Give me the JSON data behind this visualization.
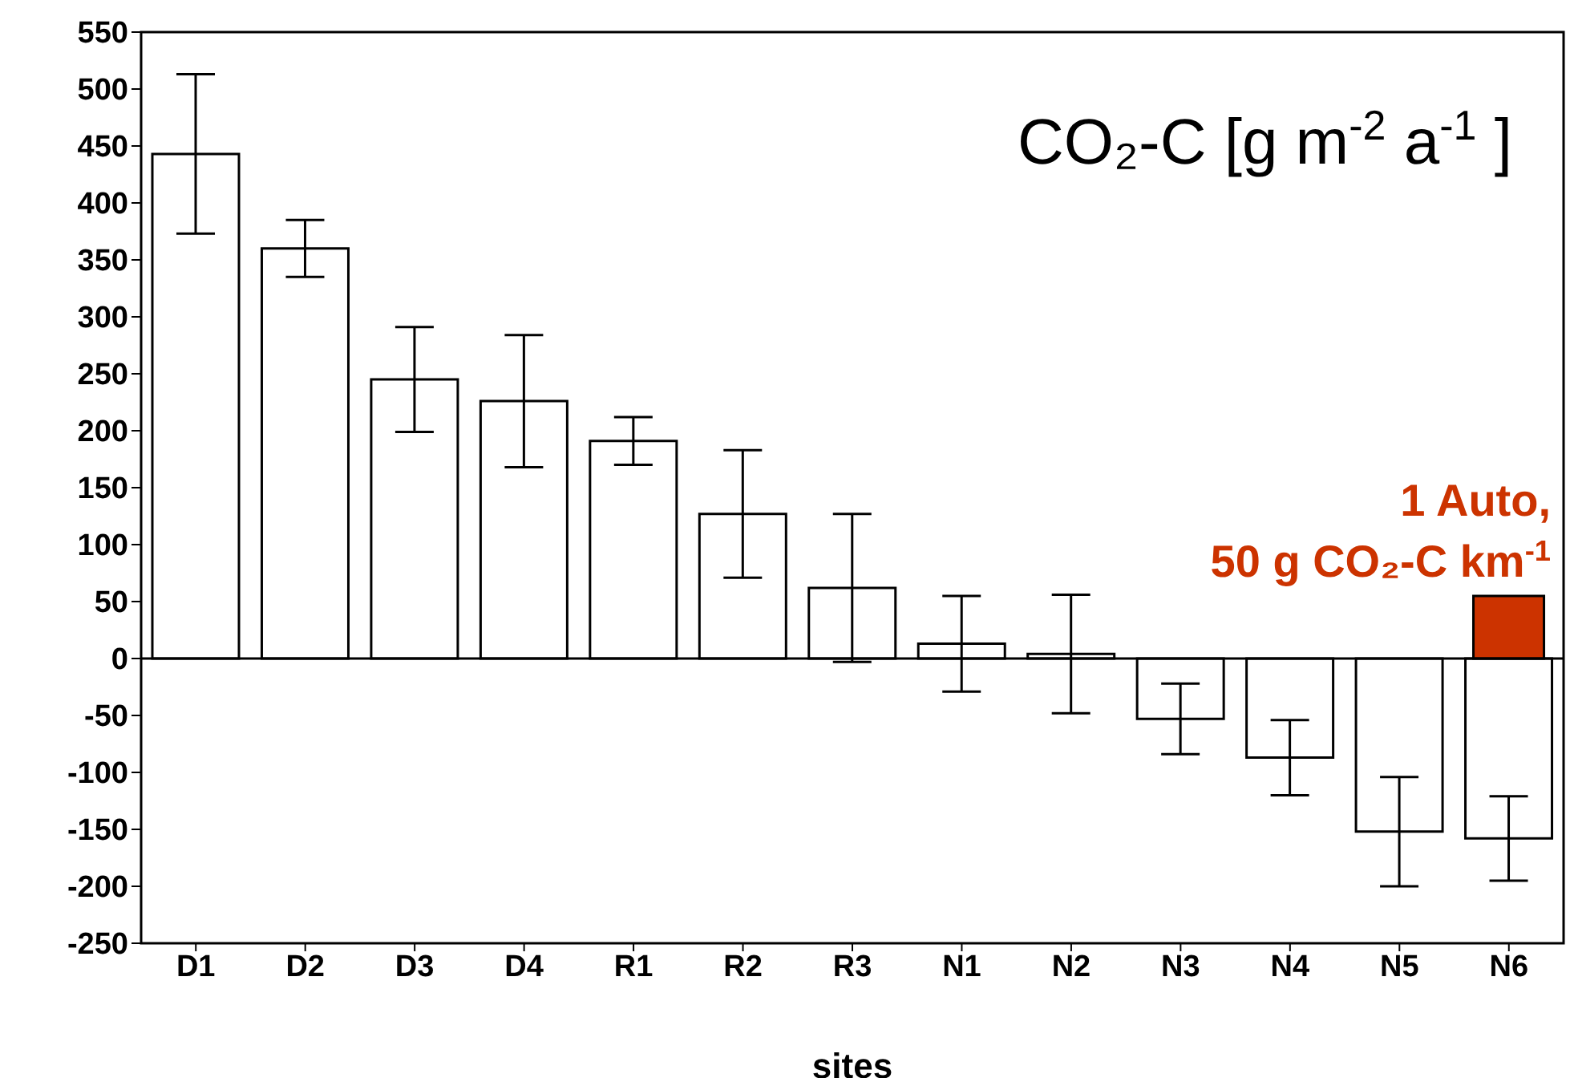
{
  "chart_data": {
    "type": "bar",
    "title": "CO₂-C [g m$^{-2}$ a$^{-1}$]",
    "xlabel": "sites",
    "categories": [
      "D1",
      "D2",
      "D3",
      "D4",
      "R1",
      "R2",
      "R3",
      "N1",
      "N2",
      "N3",
      "N4",
      "N5",
      "N6"
    ],
    "series": [
      {
        "color": "#ffffff",
        "values": [
          443,
          360,
          245,
          226,
          191,
          127,
          62,
          13,
          4,
          -53,
          -87,
          -152,
          -158
        ],
        "errors": [
          70,
          25,
          46,
          58,
          21,
          56,
          65,
          42,
          52,
          31,
          33,
          48,
          37
        ]
      },
      {
        "color": "#cc3300",
        "values": [
          null,
          null,
          null,
          null,
          null,
          null,
          null,
          null,
          null,
          null,
          null,
          null,
          55
        ]
      }
    ],
    "annotations": [
      {
        "text": "1 Auto,\n50 g CO₂-C km$^{-1}$",
        "x": "N6",
        "y": 55
      }
    ],
    "ylim": [
      -250,
      550
    ],
    "yticks": [
      -250,
      -200,
      -150,
      -100,
      -50,
      0,
      50,
      100,
      150,
      200,
      250,
      300,
      350,
      400,
      450,
      500,
      550
    ],
    "ref_lines": [
      {
        "axis": "y",
        "value": 0,
        "color": "#000000"
      }
    ],
    "grid": false,
    "legend": false
  }
}
